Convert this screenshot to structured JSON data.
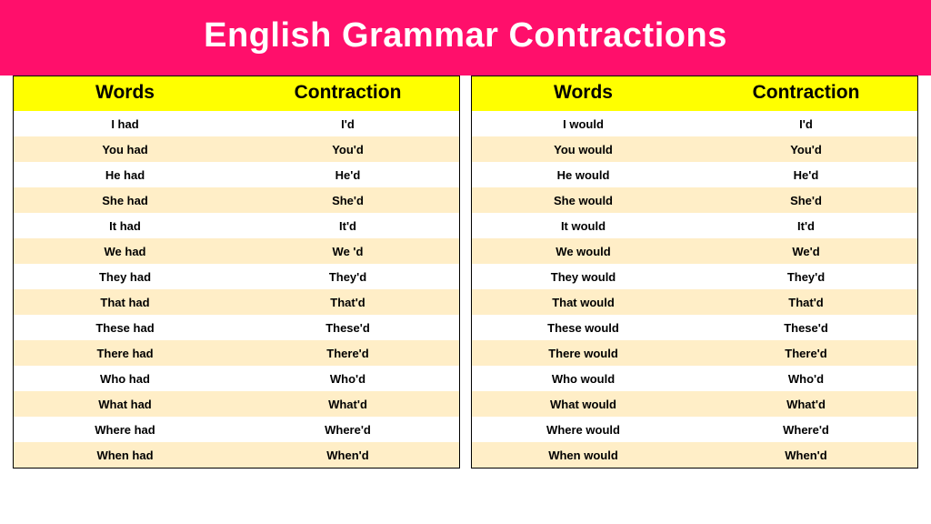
{
  "header": {
    "title": "English Grammar Contractions",
    "bg_color": "#ff0f6b",
    "text_color": "#ffffff",
    "title_fontsize": 38
  },
  "table_style": {
    "header_bg": "#ffff00",
    "header_text": "#000000",
    "row_odd_bg": "#ffffff",
    "row_even_bg": "#ffeec7",
    "row_text": "#000000",
    "border_color": "#000000"
  },
  "left_table": {
    "columns": [
      "Words",
      "Contraction"
    ],
    "rows": [
      [
        "I had",
        "I'd"
      ],
      [
        "You had",
        "You'd"
      ],
      [
        "He had",
        "He'd"
      ],
      [
        "She had",
        "She'd"
      ],
      [
        "It had",
        "It'd"
      ],
      [
        "We had",
        "We 'd"
      ],
      [
        "They had",
        "They'd"
      ],
      [
        "That had",
        "That'd"
      ],
      [
        "These had",
        "These'd"
      ],
      [
        "There had",
        "There'd"
      ],
      [
        "Who had",
        "Who'd"
      ],
      [
        "What had",
        "What'd"
      ],
      [
        "Where had",
        "Where'd"
      ],
      [
        "When had",
        "When'd"
      ]
    ]
  },
  "right_table": {
    "columns": [
      "Words",
      "Contraction"
    ],
    "rows": [
      [
        "I would",
        "I'd"
      ],
      [
        "You would",
        "You'd"
      ],
      [
        "He would",
        "He'd"
      ],
      [
        "She would",
        "She'd"
      ],
      [
        "It would",
        "It'd"
      ],
      [
        "We would",
        "We'd"
      ],
      [
        "They would",
        "They'd"
      ],
      [
        "That would",
        "That'd"
      ],
      [
        "These would",
        "These'd"
      ],
      [
        "There would",
        "There'd"
      ],
      [
        "Who would",
        "Who'd"
      ],
      [
        "What would",
        "What'd"
      ],
      [
        "Where would",
        "Where'd"
      ],
      [
        "When would",
        "When'd"
      ]
    ]
  }
}
